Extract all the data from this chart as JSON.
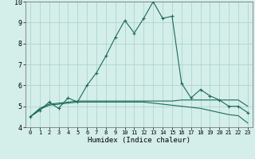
{
  "xlabel": "Humidex (Indice chaleur)",
  "bg_color": "#d4eeea",
  "grid_color": "#aacfca",
  "line_color": "#1a6b5a",
  "xlim": [
    -0.5,
    23.5
  ],
  "ylim": [
    4,
    10
  ],
  "yticks": [
    4,
    5,
    6,
    7,
    8,
    9,
    10
  ],
  "xticks": [
    0,
    1,
    2,
    3,
    4,
    5,
    6,
    7,
    8,
    9,
    10,
    11,
    12,
    13,
    14,
    15,
    16,
    17,
    18,
    19,
    20,
    21,
    22,
    23
  ],
  "series1_x": [
    0,
    1,
    2,
    3,
    4,
    5,
    6,
    7,
    8,
    9,
    10,
    11,
    12,
    13,
    14,
    15,
    16,
    17,
    18,
    19,
    20,
    21,
    22,
    23
  ],
  "series1_y": [
    4.5,
    4.8,
    5.2,
    4.9,
    5.4,
    5.2,
    6.0,
    6.6,
    7.4,
    8.3,
    9.1,
    8.5,
    9.2,
    10.0,
    9.2,
    9.3,
    6.1,
    5.4,
    5.8,
    5.5,
    5.3,
    5.0,
    5.0,
    4.7
  ],
  "series2_x": [
    0,
    1,
    2,
    3,
    4,
    5,
    6,
    7,
    8,
    9,
    10,
    11,
    12,
    13,
    14,
    15,
    16,
    17,
    18,
    19,
    20,
    21,
    22,
    23
  ],
  "series2_y": [
    4.5,
    4.85,
    5.05,
    5.1,
    5.15,
    5.2,
    5.2,
    5.2,
    5.2,
    5.2,
    5.2,
    5.2,
    5.2,
    5.15,
    5.1,
    5.05,
    5.0,
    4.95,
    4.9,
    4.8,
    4.7,
    4.6,
    4.55,
    4.2
  ],
  "series3_x": [
    0,
    1,
    2,
    3,
    4,
    5,
    6,
    7,
    8,
    9,
    10,
    11,
    12,
    13,
    14,
    15,
    16,
    17,
    18,
    19,
    20,
    21,
    22,
    23
  ],
  "series3_y": [
    4.5,
    4.9,
    5.1,
    5.15,
    5.2,
    5.25,
    5.25,
    5.25,
    5.25,
    5.25,
    5.25,
    5.25,
    5.25,
    5.25,
    5.25,
    5.25,
    5.3,
    5.3,
    5.3,
    5.3,
    5.3,
    5.3,
    5.3,
    5.0
  ]
}
